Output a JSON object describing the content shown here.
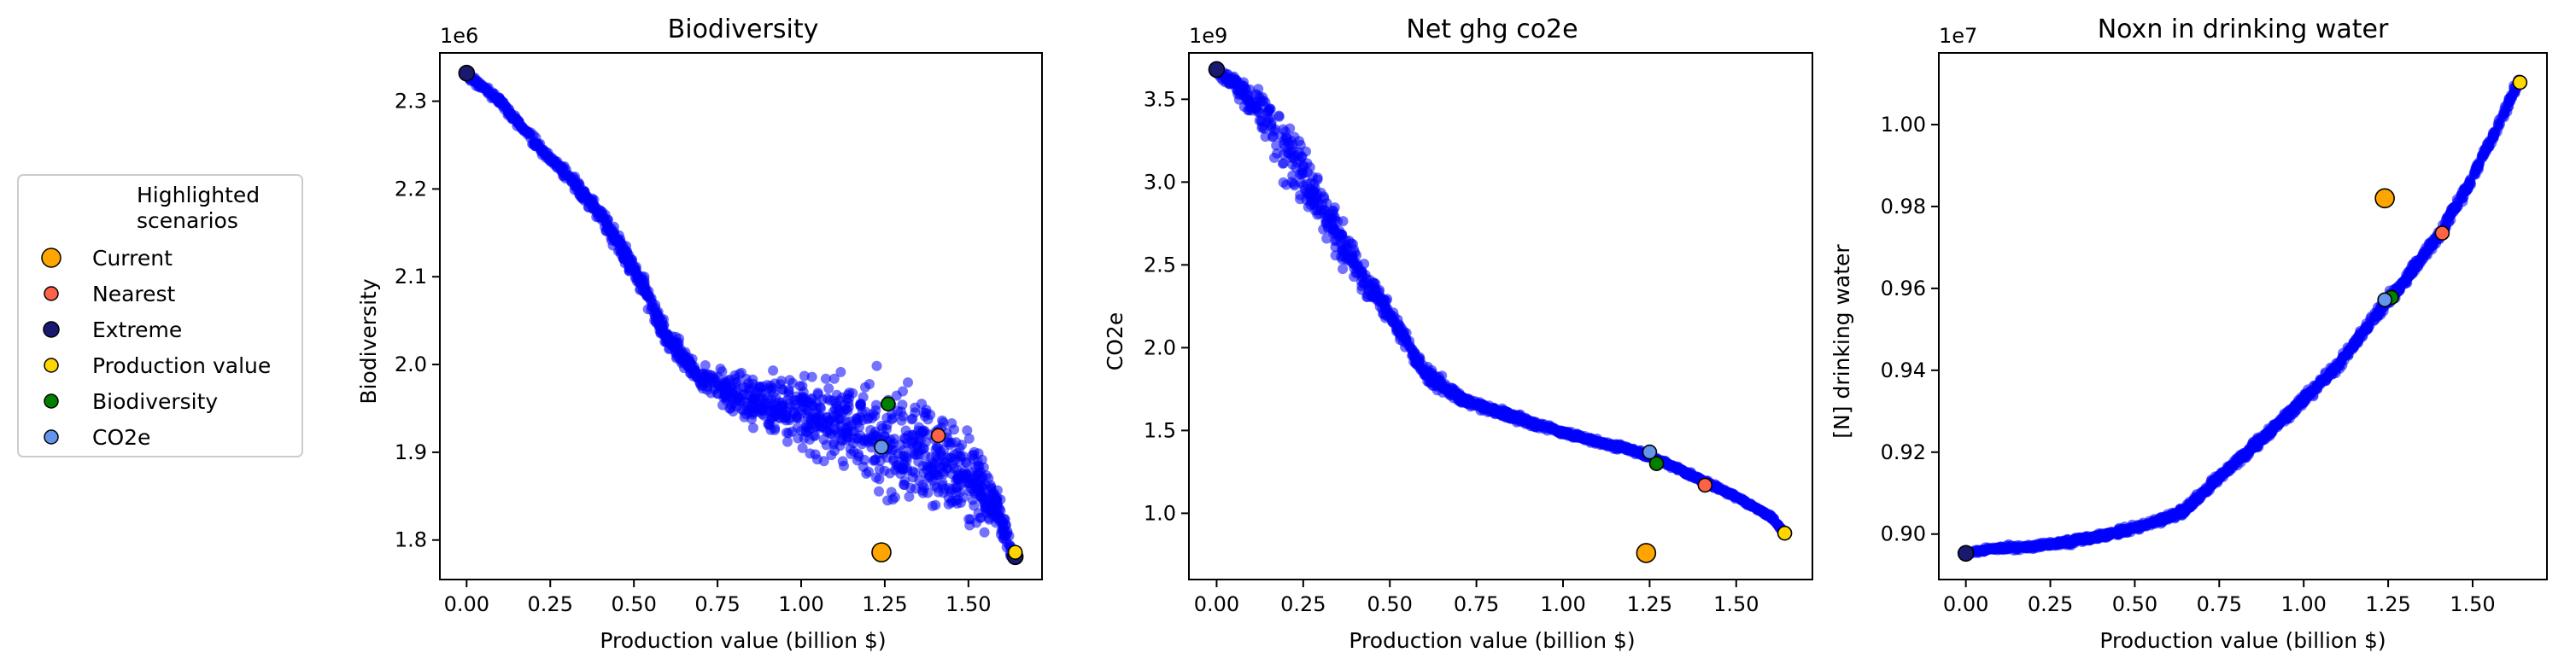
{
  "chart_data": [
    {
      "type": "scatter",
      "title": "Biodiversity",
      "xlabel": "Production value (billion $)",
      "ylabel": "Biodiversity",
      "offset_text": "1e6",
      "xlim": [
        -0.08,
        1.72
      ],
      "ylim": [
        1.755,
        2.355
      ],
      "xticks": [
        0.0,
        0.25,
        0.5,
        0.75,
        1.0,
        1.25,
        1.5
      ],
      "xtick_labels": [
        "0.00",
        "0.25",
        "0.50",
        "0.75",
        "1.00",
        "1.25",
        "1.50"
      ],
      "yticks": [
        1.8,
        1.9,
        2.0,
        2.1,
        2.2,
        2.3
      ],
      "ytick_labels": [
        "1.8",
        "1.9",
        "2.0",
        "2.1",
        "2.2",
        "2.3"
      ],
      "cloud": {
        "color": "#0000ff",
        "curve": [
          [
            0.0,
            2.33
          ],
          [
            0.1,
            2.3
          ],
          [
            0.2,
            2.255
          ],
          [
            0.3,
            2.215
          ],
          [
            0.4,
            2.17
          ],
          [
            0.5,
            2.11
          ],
          [
            0.6,
            2.03
          ],
          [
            0.7,
            1.985
          ],
          [
            0.8,
            1.965
          ],
          [
            0.9,
            1.955
          ],
          [
            1.0,
            1.945
          ],
          [
            1.1,
            1.935
          ],
          [
            1.2,
            1.925
          ],
          [
            1.3,
            1.912
          ],
          [
            1.4,
            1.9
          ],
          [
            1.5,
            1.875
          ],
          [
            1.58,
            1.84
          ],
          [
            1.63,
            1.785
          ]
        ],
        "spread": [
          [
            0.0,
            0.003
          ],
          [
            0.5,
            0.01
          ],
          [
            0.7,
            0.012
          ],
          [
            1.0,
            0.04
          ],
          [
            1.3,
            0.06
          ],
          [
            1.5,
            0.05
          ],
          [
            1.63,
            0.01
          ]
        ]
      },
      "highlighted": [
        {
          "scenario": "Current",
          "x": 1.24,
          "y": 1.786
        },
        {
          "scenario": "Nearest",
          "x": 1.41,
          "y": 1.919
        },
        {
          "scenario": "Extreme",
          "x": 0.0,
          "y": 2.332
        },
        {
          "scenario": "Extreme",
          "x": 1.64,
          "y": 1.781
        },
        {
          "scenario": "Production value",
          "x": 1.64,
          "y": 1.786
        },
        {
          "scenario": "Biodiversity",
          "x": 1.26,
          "y": 1.955
        },
        {
          "scenario": "CO2e",
          "x": 1.24,
          "y": 1.906
        }
      ]
    },
    {
      "type": "scatter",
      "title": "Net ghg co2e",
      "xlabel": "Production value (billion $)",
      "ylabel": "CO2e",
      "offset_text": "1e9",
      "xlim": [
        -0.08,
        1.72
      ],
      "ylim": [
        0.6,
        3.78
      ],
      "xticks": [
        0.0,
        0.25,
        0.5,
        0.75,
        1.0,
        1.25,
        1.5
      ],
      "xtick_labels": [
        "0.00",
        "0.25",
        "0.50",
        "0.75",
        "1.00",
        "1.25",
        "1.50"
      ],
      "yticks": [
        1.0,
        1.5,
        2.0,
        2.5,
        3.0,
        3.5
      ],
      "ytick_labels": [
        "1.0",
        "1.5",
        "2.0",
        "2.5",
        "3.0",
        "3.5"
      ],
      "cloud": {
        "color": "#0000ff",
        "curve": [
          [
            0.0,
            3.68
          ],
          [
            0.1,
            3.5
          ],
          [
            0.2,
            3.2
          ],
          [
            0.3,
            2.85
          ],
          [
            0.4,
            2.5
          ],
          [
            0.5,
            2.2
          ],
          [
            0.6,
            1.85
          ],
          [
            0.7,
            1.7
          ],
          [
            0.8,
            1.62
          ],
          [
            0.9,
            1.55
          ],
          [
            1.0,
            1.49
          ],
          [
            1.1,
            1.43
          ],
          [
            1.2,
            1.38
          ],
          [
            1.3,
            1.3
          ],
          [
            1.4,
            1.2
          ],
          [
            1.5,
            1.1
          ],
          [
            1.6,
            0.98
          ],
          [
            1.64,
            0.88
          ]
        ],
        "spread": [
          [
            0.0,
            0.02
          ],
          [
            0.2,
            0.2
          ],
          [
            0.35,
            0.12
          ],
          [
            0.5,
            0.06
          ],
          [
            0.7,
            0.03
          ],
          [
            1.0,
            0.015
          ],
          [
            1.64,
            0.01
          ]
        ]
      },
      "highlighted": [
        {
          "scenario": "Current",
          "x": 1.24,
          "y": 0.76
        },
        {
          "scenario": "Nearest",
          "x": 1.41,
          "y": 1.17
        },
        {
          "scenario": "Extreme",
          "x": 0.0,
          "y": 3.68
        },
        {
          "scenario": "Production value",
          "x": 1.64,
          "y": 0.88
        },
        {
          "scenario": "Biodiversity",
          "x": 1.27,
          "y": 1.3
        },
        {
          "scenario": "CO2e",
          "x": 1.25,
          "y": 1.37
        }
      ]
    },
    {
      "type": "scatter",
      "title": "Noxn in drinking water",
      "xlabel": "Production value (billion $)",
      "ylabel": "[N] drinking water",
      "offset_text": "1e7",
      "xlim": [
        -0.08,
        1.72
      ],
      "ylim": [
        0.8889,
        1.0175
      ],
      "xticks": [
        0.0,
        0.25,
        0.5,
        0.75,
        1.0,
        1.25,
        1.5
      ],
      "xtick_labels": [
        "0.00",
        "0.25",
        "0.50",
        "0.75",
        "1.00",
        "1.25",
        "1.50"
      ],
      "yticks": [
        0.9,
        0.92,
        0.94,
        0.96,
        0.98,
        1.0
      ],
      "ytick_labels": [
        "0.90",
        "0.92",
        "0.94",
        "0.96",
        "0.98",
        "1.00"
      ],
      "cloud": {
        "color": "#0000ff",
        "curve": [
          [
            0.0,
            0.8955
          ],
          [
            0.1,
            0.8965
          ],
          [
            0.2,
            0.897
          ],
          [
            0.3,
            0.898
          ],
          [
            0.4,
            0.8995
          ],
          [
            0.5,
            0.9015
          ],
          [
            0.6,
            0.904
          ],
          [
            0.65,
            0.906
          ],
          [
            0.75,
            0.914
          ],
          [
            0.9,
            0.925
          ],
          [
            1.0,
            0.933
          ],
          [
            1.1,
            0.941
          ],
          [
            1.2,
            0.952
          ],
          [
            1.3,
            0.962
          ],
          [
            1.4,
            0.973
          ],
          [
            1.5,
            0.987
          ],
          [
            1.6,
            1.004
          ],
          [
            1.64,
            1.011
          ]
        ],
        "spread": [
          [
            0.0,
            0.0005
          ],
          [
            0.6,
            0.0008
          ],
          [
            1.0,
            0.0012
          ],
          [
            1.64,
            0.0015
          ]
        ]
      },
      "highlighted": [
        {
          "scenario": "Current",
          "x": 1.24,
          "y": 0.982
        },
        {
          "scenario": "Nearest",
          "x": 1.41,
          "y": 0.9735
        },
        {
          "scenario": "Extreme",
          "x": 0.0,
          "y": 0.8953
        },
        {
          "scenario": "Production value",
          "x": 1.64,
          "y": 1.0103
        },
        {
          "scenario": "Biodiversity",
          "x": 1.26,
          "y": 0.9578
        },
        {
          "scenario": "CO2e",
          "x": 1.24,
          "y": 0.9572
        }
      ]
    }
  ],
  "legend": {
    "title_line1": "Highlighted",
    "title_line2": "scenarios",
    "entries": [
      {
        "label": "Current",
        "color": "#ffa500"
      },
      {
        "label": "Nearest",
        "color": "#ff6347"
      },
      {
        "label": "Extreme",
        "color": "#191970"
      },
      {
        "label": "Production value",
        "color": "#ffd700"
      },
      {
        "label": "Biodiversity",
        "color": "#008000"
      },
      {
        "label": "CO2e",
        "color": "#6495ed"
      }
    ]
  }
}
